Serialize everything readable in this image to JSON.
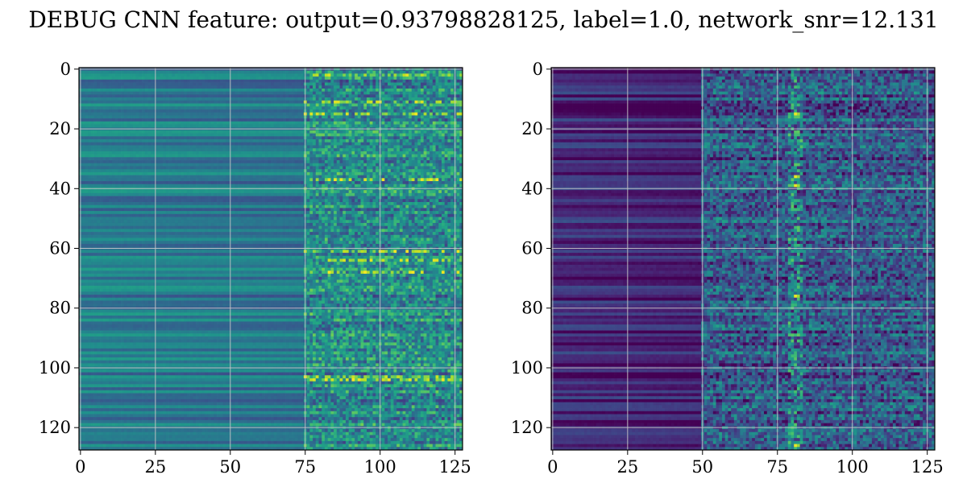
{
  "figure": {
    "title": "DEBUG CNN feature: output=0.93798828125, label=1.0, network_snr=12.131"
  },
  "chart_data": [
    {
      "type": "heatmap",
      "name": "",
      "rows": 128,
      "cols": 128,
      "colormap": "viridis",
      "value_range": [
        0,
        1
      ],
      "xlim": [
        -0.5,
        127.5
      ],
      "ylim": [
        127.5,
        -0.5
      ],
      "x_ticks": [
        0,
        25,
        50,
        75,
        100,
        125
      ],
      "y_ticks": [
        0,
        20,
        40,
        60,
        80,
        100,
        120
      ],
      "grid": true,
      "description_of_pattern": {
        "smooth_region_cols": [
          0,
          75
        ],
        "noisy_region_cols": [
          75,
          127
        ],
        "mean_smooth": 0.42,
        "mean_noisy": 0.48,
        "bright_rows": [
          2,
          11,
          15,
          37,
          61,
          64,
          68,
          103,
          104
        ]
      }
    },
    {
      "type": "heatmap",
      "name": "",
      "rows": 128,
      "cols": 128,
      "colormap": "viridis",
      "value_range": [
        0,
        1
      ],
      "xlim": [
        -0.5,
        127.5
      ],
      "ylim": [
        127.5,
        -0.5
      ],
      "x_ticks": [
        0,
        25,
        50,
        75,
        100,
        125
      ],
      "y_ticks": [
        0,
        20,
        40,
        60,
        80,
        100,
        120
      ],
      "grid": true,
      "description_of_pattern": {
        "smooth_region_cols": [
          0,
          50
        ],
        "noisy_region_cols": [
          50,
          127
        ],
        "mean_smooth": 0.12,
        "mean_noisy": 0.28,
        "hot_column": 81,
        "hot_rows": [
          15,
          36,
          39,
          76,
          126
        ]
      }
    }
  ]
}
